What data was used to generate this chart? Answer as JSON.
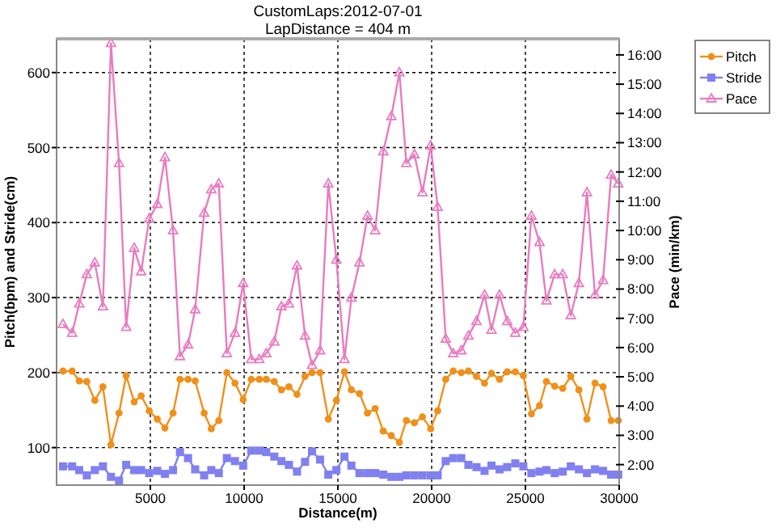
{
  "chart_data": {
    "type": "line",
    "title": "CustomLaps:2012-07-01",
    "subtitle": "LapDistance = 404 m",
    "xlabel": "Distance(m)",
    "ylabel": "Pitch(bpm) and Stride(cm)",
    "y2label": "Pace (min/km)",
    "x": [
      340,
      830,
      1210,
      1610,
      2040,
      2470,
      2900,
      3330,
      3710,
      4140,
      4510,
      4940,
      5370,
      5780,
      6210,
      6580,
      7010,
      7390,
      7870,
      8250,
      8650,
      9080,
      9510,
      9950,
      10380,
      10810,
      11180,
      11610,
      11990,
      12390,
      12820,
      13250,
      13620,
      14050,
      14490,
      14920,
      15350,
      15720,
      16150,
      16580,
      16990,
      17420,
      17850,
      18280,
      18650,
      19080,
      19510,
      19950,
      20320,
      20750,
      21150,
      21580,
      21960,
      22390,
      22820,
      23190,
      23620,
      24030,
      24460,
      24890,
      25320,
      25750,
      26120,
      26560,
      26990,
      27420,
      27850,
      28280,
      28710,
      29140,
      29570,
      29950
    ],
    "xlim": [
      0,
      30000
    ],
    "xticks": [
      5000,
      10000,
      15000,
      20000,
      25000,
      30000
    ],
    "ylim": [
      50,
      645
    ],
    "yticks": [
      100,
      200,
      300,
      400,
      500,
      600
    ],
    "y2lim": [
      1.3,
      16.55
    ],
    "y2ticks": [
      {
        "value": 2,
        "label": "2:00"
      },
      {
        "value": 3,
        "label": "3:00"
      },
      {
        "value": 4,
        "label": "4:00"
      },
      {
        "value": 5,
        "label": "5:00"
      },
      {
        "value": 6,
        "label": "6:00"
      },
      {
        "value": 7,
        "label": "7:00"
      },
      {
        "value": 8,
        "label": "8:00"
      },
      {
        "value": 9,
        "label": "9:00"
      },
      {
        "value": 10,
        "label": "10:00"
      },
      {
        "value": 11,
        "label": "11:00"
      },
      {
        "value": 12,
        "label": "12:00"
      },
      {
        "value": 13,
        "label": "13:00"
      },
      {
        "value": 14,
        "label": "14:00"
      },
      {
        "value": 15,
        "label": "15:00"
      },
      {
        "value": 16,
        "label": "16:00"
      }
    ],
    "grid": true,
    "legend": "right",
    "line_style": "solid",
    "series": [
      {
        "name": "Pitch",
        "color": "#f0901a",
        "marker": "circle",
        "values": [
          202,
          202,
          189,
          188,
          163,
          181,
          104,
          146,
          196,
          161,
          169,
          149,
          138,
          126,
          146,
          191,
          191,
          189,
          146,
          125,
          136,
          200,
          186,
          164,
          191,
          191,
          191,
          188,
          177,
          181,
          171,
          195,
          200,
          200,
          138,
          163,
          201,
          177,
          172,
          146,
          152,
          122,
          116,
          107,
          136,
          133,
          141,
          125,
          149,
          191,
          202,
          200,
          202,
          195,
          186,
          199,
          191,
          201,
          201,
          196,
          145,
          156,
          188,
          182,
          179,
          195,
          177,
          138,
          186,
          181,
          136,
          136
        ]
      },
      {
        "name": "Stride",
        "color": "#8080f0",
        "marker": "square",
        "values": [
          75,
          75,
          70,
          63,
          70,
          75,
          61,
          56,
          77,
          70,
          70,
          66,
          69,
          65,
          70,
          94,
          86,
          71,
          63,
          70,
          66,
          86,
          82,
          76,
          96,
          96,
          94,
          88,
          82,
          77,
          68,
          81,
          95,
          84,
          64,
          70,
          88,
          76,
          66,
          66,
          66,
          64,
          61,
          61,
          63,
          63,
          63,
          63,
          63,
          82,
          86,
          86,
          77,
          74,
          69,
          76,
          71,
          74,
          79,
          75,
          66,
          68,
          70,
          66,
          68,
          75,
          71,
          66,
          71,
          69,
          64,
          64
        ]
      },
      {
        "name": "Pace",
        "color": "#e87cc0",
        "marker": "triangle",
        "axis": "y2",
        "values": [
          6.8,
          6.5,
          7.5,
          8.5,
          8.9,
          7.4,
          16.4,
          12.3,
          6.7,
          9.4,
          8.6,
          10.4,
          10.9,
          12.5,
          10.0,
          5.7,
          6.1,
          7.3,
          10.6,
          11.4,
          11.6,
          5.8,
          6.5,
          8.2,
          5.6,
          5.6,
          5.8,
          6.2,
          7.4,
          7.5,
          8.8,
          6.4,
          5.4,
          5.9,
          11.6,
          9.0,
          5.6,
          7.7,
          8.9,
          10.5,
          10.0,
          12.7,
          13.9,
          15.4,
          12.3,
          12.6,
          11.3,
          12.9,
          10.8,
          6.3,
          5.8,
          5.9,
          6.4,
          6.9,
          7.8,
          6.6,
          7.8,
          6.9,
          6.5,
          6.7,
          10.5,
          9.6,
          7.6,
          8.5,
          8.5,
          7.1,
          8.2,
          11.3,
          7.8,
          8.3,
          11.9,
          11.6
        ]
      }
    ]
  }
}
